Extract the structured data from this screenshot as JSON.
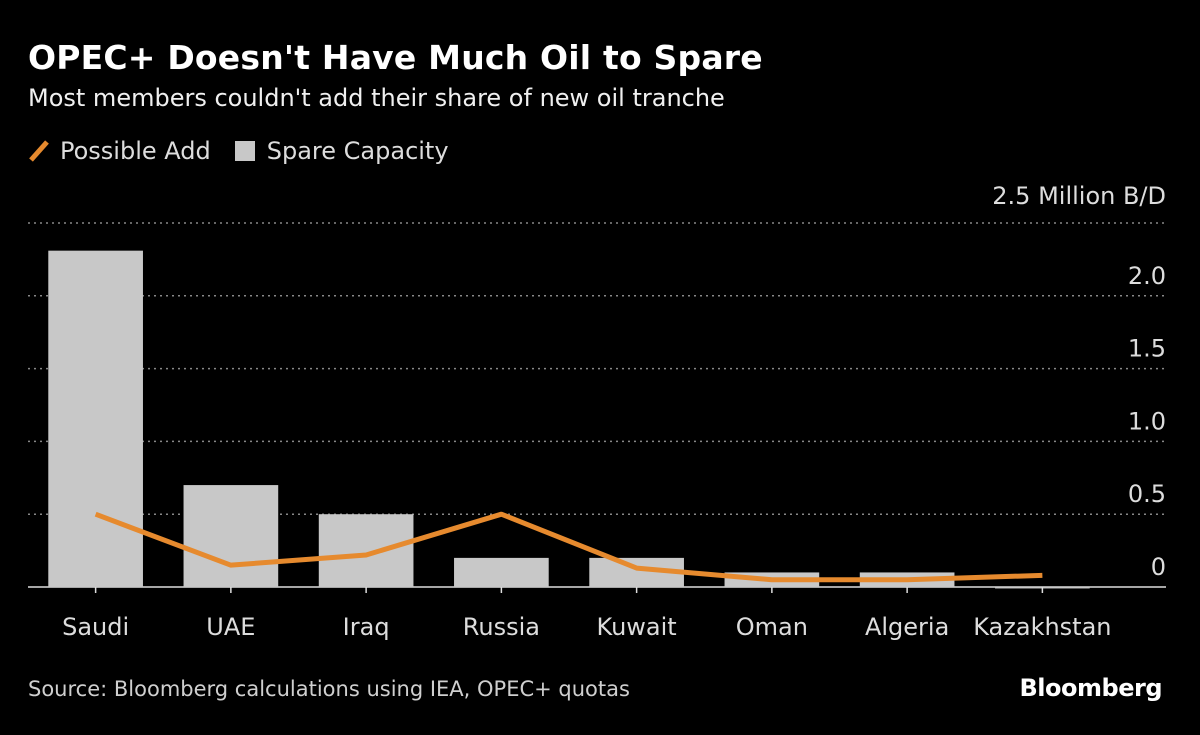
{
  "chart_data": {
    "type": "bar",
    "title": "OPEC+ Doesn't Have Much Oil to Spare",
    "subtitle": "Most members couldn't add their share of new oil tranche",
    "unit_label": "2.5 Million B/D",
    "categories": [
      "Saudi",
      "UAE",
      "Iraq",
      "Russia",
      "Kuwait",
      "Oman",
      "Algeria",
      "Kazakhstan"
    ],
    "series": [
      {
        "name": "Spare Capacity",
        "kind": "bar",
        "color": "#c8c8c8",
        "values": [
          2.31,
          0.7,
          0.5,
          0.2,
          0.2,
          0.1,
          0.1,
          -0.01
        ]
      },
      {
        "name": "Possible Add",
        "kind": "line",
        "color": "#e68a2e",
        "values": [
          0.5,
          0.15,
          0.22,
          0.5,
          0.13,
          0.05,
          0.05,
          0.08
        ]
      }
    ],
    "yticks": [
      0,
      0.5,
      1.0,
      1.5,
      2.0,
      2.5
    ],
    "ytick_labels": [
      "0",
      "0.5",
      "1.0",
      "1.5",
      "2.0",
      ""
    ],
    "ylim": [
      0,
      2.5
    ],
    "grid": true,
    "legend_position": "top-left"
  },
  "legend": {
    "line_label": "Possible Add",
    "bar_label": "Spare Capacity"
  },
  "footer": {
    "source": "Source: Bloomberg calculations using IEA, OPEC+ quotas",
    "brand": "Bloomberg"
  }
}
